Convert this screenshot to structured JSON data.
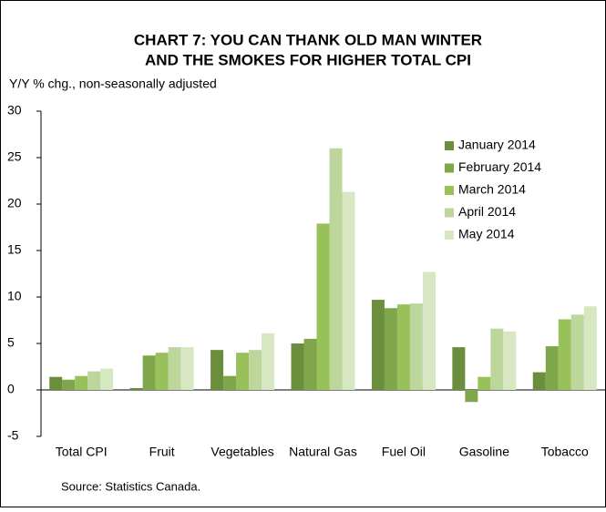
{
  "chart_data": {
    "type": "bar",
    "title": [
      "CHART 7:  YOU CAN THANK OLD MAN WINTER",
      "AND THE SMOKES FOR HIGHER TOTAL CPI"
    ],
    "subtitle": "Y/Y % chg., non-seasonally adjusted",
    "source": "Source: Statistics Canada.",
    "categories": [
      "Total CPI",
      "Fruit",
      "Vegetables",
      "Natural Gas",
      "Fuel Oil",
      "Gasoline",
      "Tobacco"
    ],
    "series": [
      {
        "name": "January 2014",
        "color": "#6b8e3d",
        "values": [
          1.4,
          0.2,
          4.3,
          5.0,
          9.7,
          4.6,
          1.9
        ]
      },
      {
        "name": "February 2014",
        "color": "#7fa64a",
        "values": [
          1.1,
          3.7,
          1.5,
          5.5,
          8.8,
          -1.3,
          4.7
        ]
      },
      {
        "name": "March 2014",
        "color": "#98c15a",
        "values": [
          1.5,
          4.0,
          4.0,
          17.9,
          9.2,
          1.4,
          7.6
        ]
      },
      {
        "name": "April 2014",
        "color": "#bcd69c",
        "values": [
          2.0,
          4.6,
          4.3,
          26.0,
          9.3,
          6.6,
          8.1
        ]
      },
      {
        "name": "May 2014",
        "color": "#d6e7c1",
        "values": [
          2.3,
          4.6,
          6.1,
          21.3,
          12.7,
          6.3,
          9.0
        ]
      }
    ],
    "ylim": [
      -5,
      30
    ],
    "yticks": [
      -5,
      0,
      5,
      10,
      15,
      20,
      25,
      30
    ],
    "legend": "upper-right"
  }
}
